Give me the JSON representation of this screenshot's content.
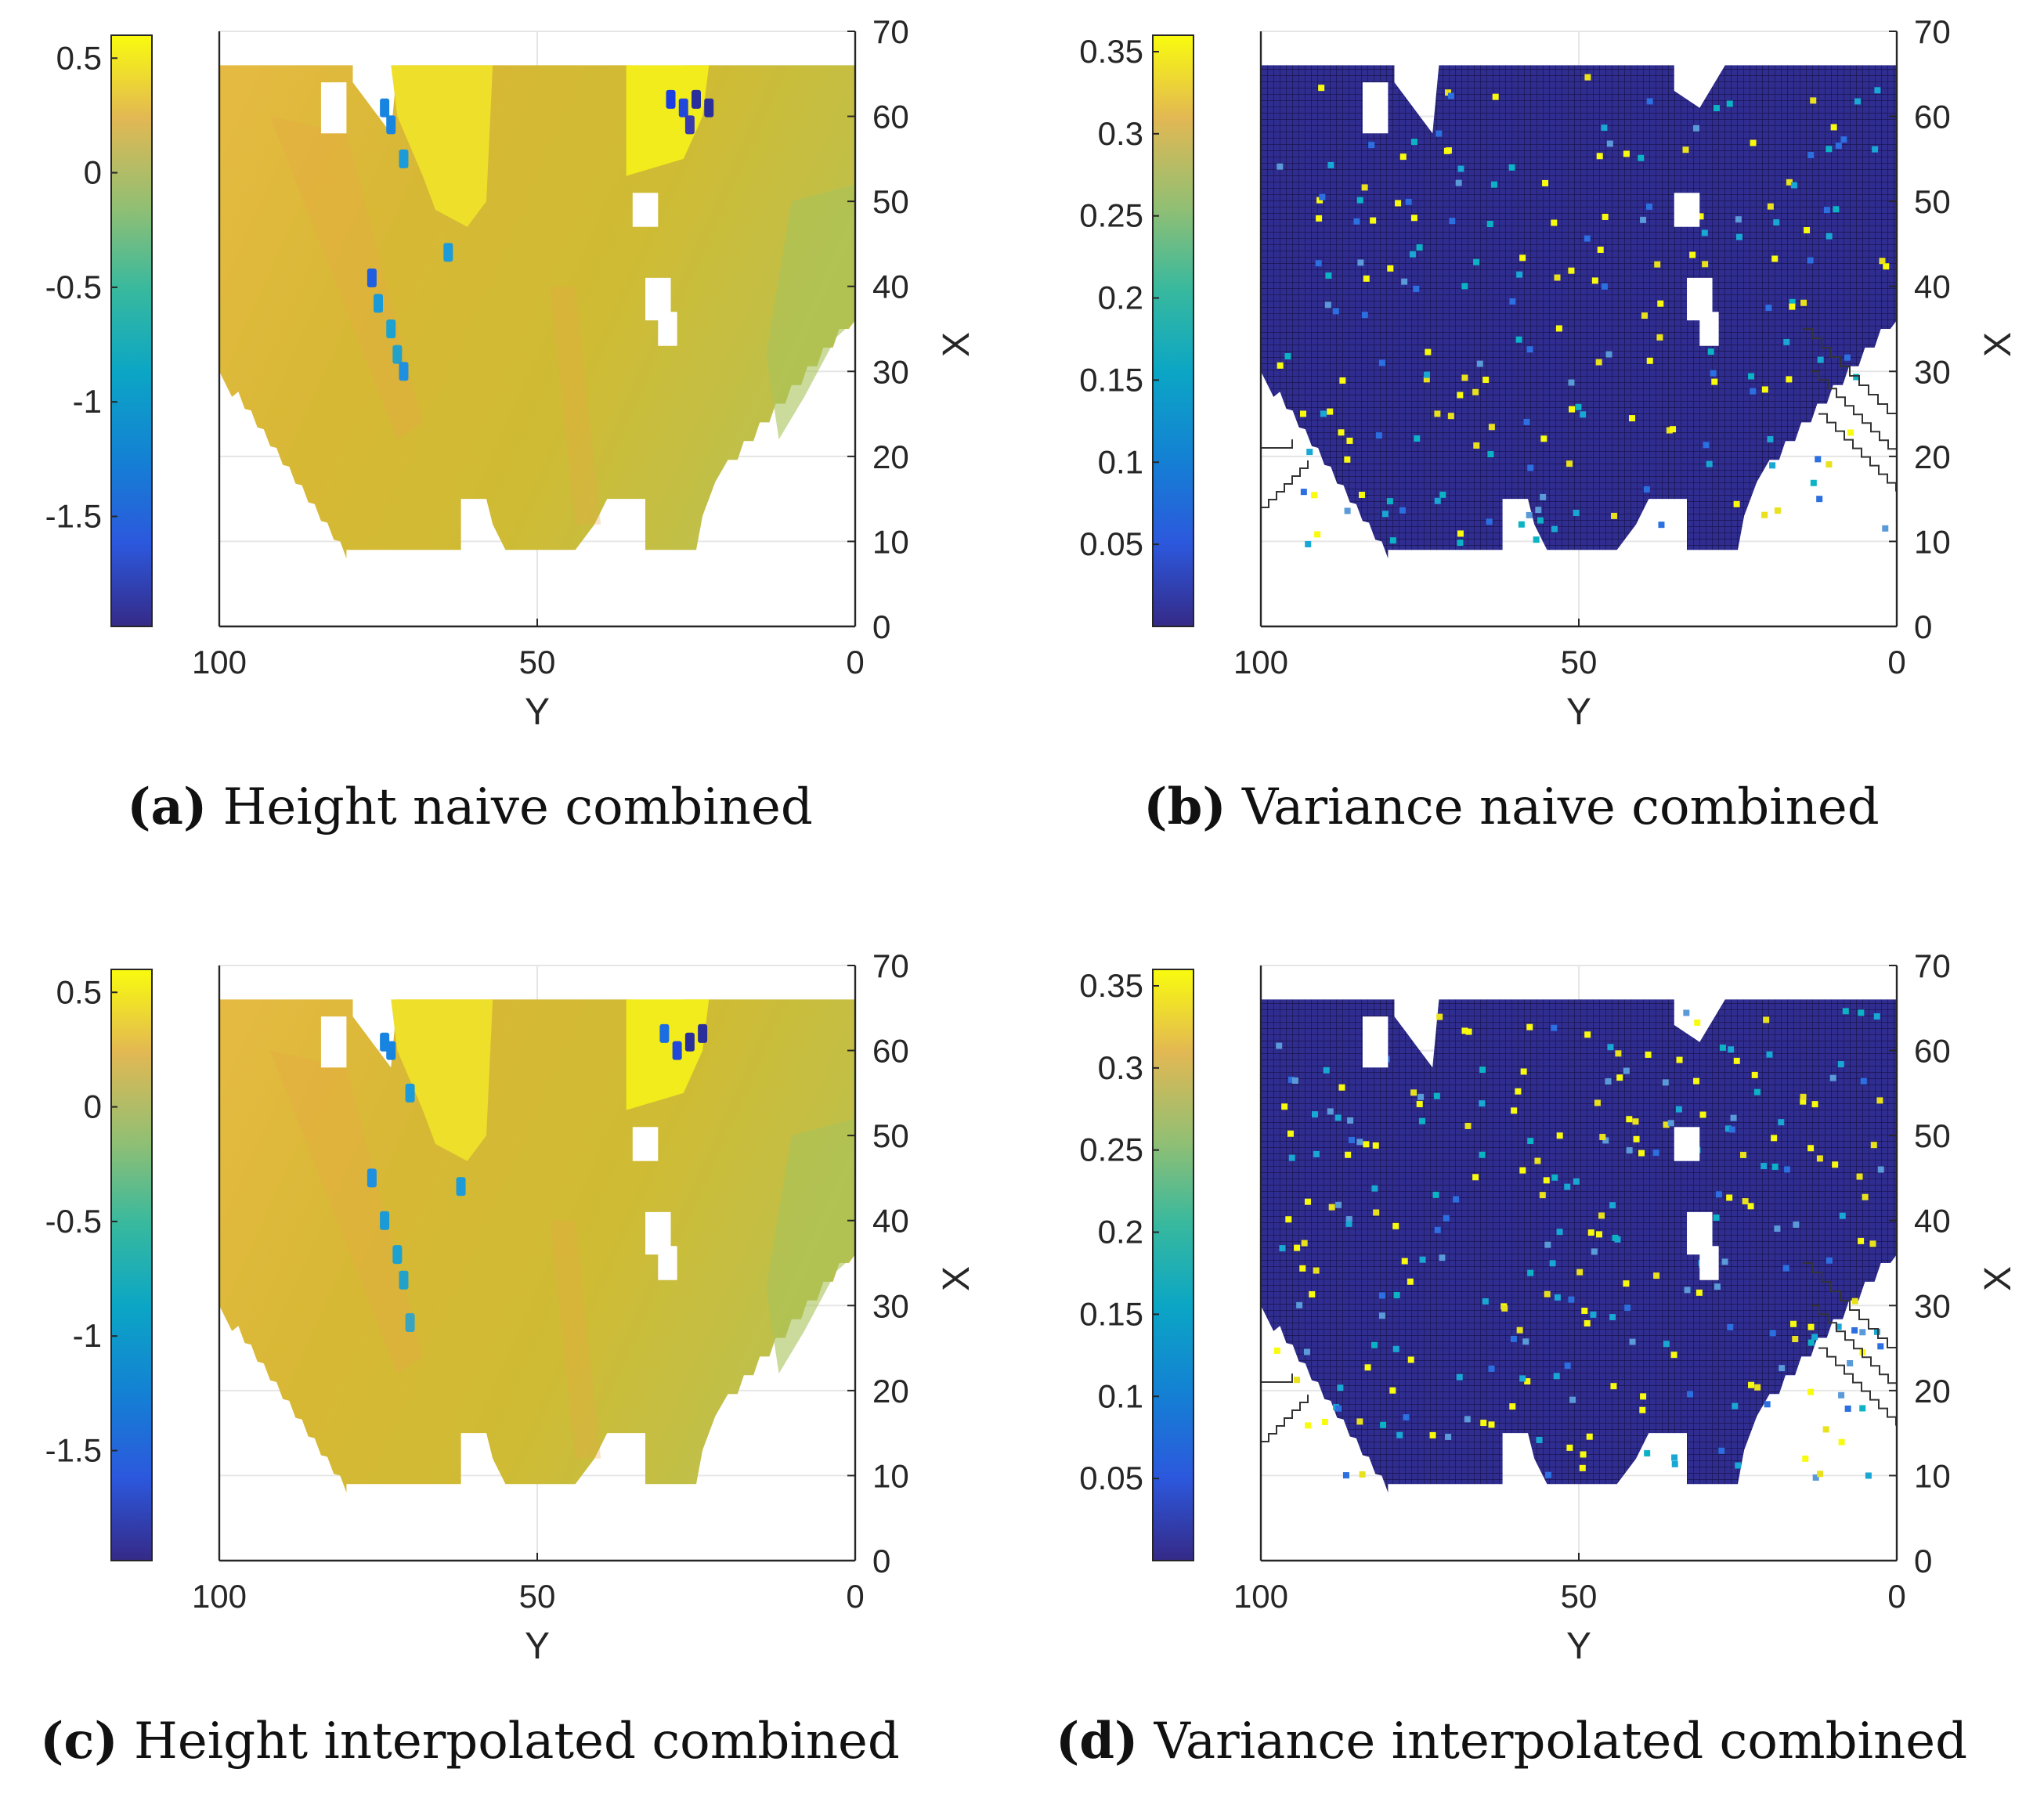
{
  "figure": {
    "panels": [
      {
        "id": "a",
        "caption_label": "(a)",
        "caption_text": "Height naive combined",
        "variant": "height",
        "interpolated": false
      },
      {
        "id": "b",
        "caption_label": "(b)",
        "caption_text": "Variance naive combined",
        "variant": "variance",
        "interpolated": false
      },
      {
        "id": "c",
        "caption_label": "(c)",
        "caption_text": "Height interpolated combined",
        "variant": "height",
        "interpolated": true
      },
      {
        "id": "d",
        "caption_label": "(d)",
        "caption_text": "Variance interpolated combined",
        "variant": "variance",
        "interpolated": true
      }
    ]
  },
  "chart_data": [
    {
      "type": "heatmap",
      "title": "Height naive combined",
      "xlabel": "Y",
      "ylabel": "X",
      "x_ticks": [
        "100",
        "50",
        "0"
      ],
      "xlim": [
        100,
        0
      ],
      "y_ticks": [
        "0",
        "10",
        "20",
        "30",
        "40",
        "50",
        "60",
        "70"
      ],
      "ylim": [
        0,
        70
      ],
      "colorbar_ticks": [
        "0.5",
        "0",
        "-0.5",
        "-1",
        "-1.5"
      ],
      "colorbar_values": [
        0.5,
        0,
        -0.5,
        -1,
        -1.5
      ],
      "colorbar_range": [
        -1.98,
        0.6
      ],
      "colormap": "parula",
      "grid": true
    },
    {
      "type": "heatmap",
      "title": "Variance naive combined",
      "xlabel": "Y",
      "ylabel": "X",
      "x_ticks": [
        "100",
        "50",
        "0"
      ],
      "xlim": [
        100,
        0
      ],
      "y_ticks": [
        "0",
        "10",
        "20",
        "30",
        "40",
        "50",
        "60",
        "70"
      ],
      "ylim": [
        0,
        70
      ],
      "colorbar_ticks": [
        "0.35",
        "0.3",
        "0.25",
        "0.2",
        "0.15",
        "0.1",
        "0.05"
      ],
      "colorbar_values": [
        0.35,
        0.3,
        0.25,
        0.2,
        0.15,
        0.1,
        0.05
      ],
      "colorbar_range": [
        0.0,
        0.36
      ],
      "colormap": "parula",
      "grid": true
    },
    {
      "type": "heatmap",
      "title": "Height interpolated combined",
      "xlabel": "Y",
      "ylabel": "X",
      "x_ticks": [
        "100",
        "50",
        "0"
      ],
      "xlim": [
        100,
        0
      ],
      "y_ticks": [
        "0",
        "10",
        "20",
        "30",
        "40",
        "50",
        "60",
        "70"
      ],
      "ylim": [
        0,
        70
      ],
      "colorbar_ticks": [
        "0.5",
        "0",
        "-0.5",
        "-1",
        "-1.5"
      ],
      "colorbar_values": [
        0.5,
        0,
        -0.5,
        -1,
        -1.5
      ],
      "colorbar_range": [
        -1.98,
        0.6
      ],
      "colormap": "parula",
      "grid": true
    },
    {
      "type": "heatmap",
      "title": "Variance interpolated combined",
      "xlabel": "Y",
      "ylabel": "X",
      "x_ticks": [
        "100",
        "50",
        "0"
      ],
      "xlim": [
        100,
        0
      ],
      "y_ticks": [
        "0",
        "10",
        "20",
        "30",
        "40",
        "50",
        "60",
        "70"
      ],
      "ylim": [
        0,
        70
      ],
      "colorbar_ticks": [
        "0.35",
        "0.3",
        "0.25",
        "0.2",
        "0.15",
        "0.1",
        "0.05"
      ],
      "colorbar_values": [
        0.35,
        0.3,
        0.25,
        0.2,
        0.15,
        0.1,
        0.05
      ],
      "colorbar_range": [
        0.0,
        0.36
      ],
      "colormap": "parula",
      "grid": true
    }
  ]
}
